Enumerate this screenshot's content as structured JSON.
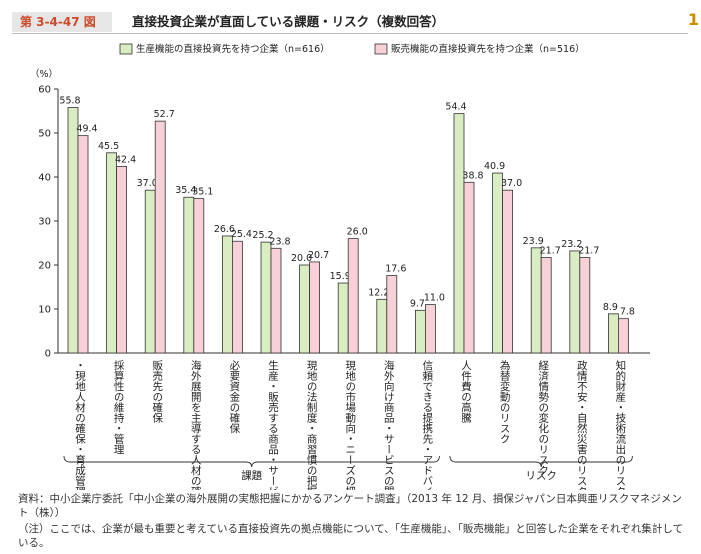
{
  "header": {
    "figure_number": "第 3-4-47 図",
    "title": "直接投資企業が直面している課題・リスク（複数回答）",
    "page_mark": "1"
  },
  "colors": {
    "series1": "#d9ecc2",
    "series2": "#f8d0d8",
    "stroke": "#333333"
  },
  "chart_data": {
    "type": "bar",
    "unit_label": "（%）",
    "ylim": [
      0,
      60
    ],
    "yticks": [
      0,
      10,
      20,
      30,
      40,
      50,
      60
    ],
    "grid": false,
    "legend_position": "top",
    "categories": [
      "・現地人材の確保・育成管理",
      "採算性の維持・管理",
      "販売先の確保",
      "海外展開を主導する人材の確保・育成",
      "必要資金の確保",
      "生産・販売する商品・サービスの質の確保",
      "現地の法制度・商習慣の把握",
      "現地の市場動向・ニーズの把握",
      "海外向け商品・サービスの開発",
      "信頼できる提携先・アドバイザーの確保",
      "人件費の高騰",
      "為替変動のリスク",
      "経済情勢の変化のリスク",
      "政情不安・自然災害のリスク",
      "知的財産・技術流出のリスク"
    ],
    "series": [
      {
        "name": "生産機能の直接投資先を持つ企業（n=616）",
        "values": [
          55.8,
          45.5,
          37.0,
          35.4,
          26.6,
          25.2,
          20.0,
          15.9,
          12.2,
          9.7,
          54.4,
          40.9,
          23.9,
          23.2,
          8.9
        ]
      },
      {
        "name": "販売機能の直接投資先を持つ企業（n=516）",
        "values": [
          49.4,
          42.4,
          52.7,
          35.1,
          25.4,
          23.8,
          20.7,
          26.0,
          17.6,
          11.0,
          38.8,
          37.0,
          21.7,
          21.7,
          7.8
        ]
      }
    ],
    "value_labels": [
      [
        "55.8",
        "45.5",
        "37.0",
        "35.4",
        "26.6",
        "25.2",
        "20.0",
        "15.9",
        "12.2",
        "9.7",
        "54.4",
        "40.9",
        "23.9",
        "23.2",
        "8.9"
      ],
      [
        "49.4",
        "42.4",
        "52.7",
        "35.1",
        "25.4",
        "23.8",
        "20.7",
        "26.0",
        "17.6",
        "11.0",
        "38.8",
        "37.0",
        "21.7",
        "21.7",
        "7.8"
      ]
    ],
    "groups": [
      {
        "label": "課題",
        "from": 0,
        "to": 9
      },
      {
        "label": "リスク",
        "from": 10,
        "to": 14
      }
    ]
  },
  "notes": {
    "source": "資料：中小企業庁委託「中小企業の海外展開の実態把握にかかるアンケート調査」（2013 年 12 月、損保ジャパン日本興亜リスクマネジメント（株））",
    "note": "（注）ここでは、企業が最も重要と考えている直接投資先の拠点機能について、「生産機能」、「販売機能」と回答した企業をそれぞれ集計している。"
  }
}
